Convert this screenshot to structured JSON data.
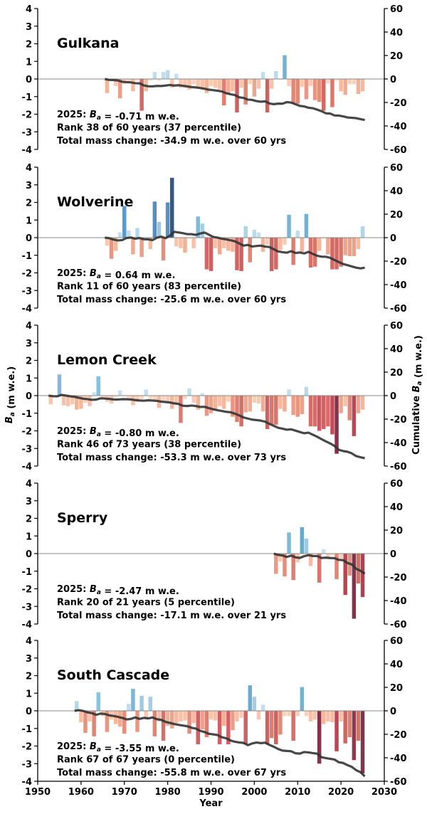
{
  "chart_data": {
    "type": "bar",
    "xlabel": "Year",
    "ylabel": "B_a (m w.e.)",
    "ylabel_right": "Cumulative B_a (m w.e.)",
    "xlim": [
      1950,
      2030
    ],
    "xticks": [
      1950,
      1960,
      1970,
      1980,
      1990,
      2000,
      2010,
      2020,
      2030
    ],
    "ylim": [
      -4,
      4
    ],
    "yticks": [
      -4,
      -3,
      -2,
      -1,
      0,
      1,
      2,
      3,
      4
    ],
    "ylim_right": [
      -60,
      60
    ],
    "yticks_right": [
      -60,
      -40,
      -20,
      0,
      20,
      40,
      60
    ],
    "bar_colormap": "red-blue diverging (red negative, blue positive)",
    "line_color": "#333333",
    "panels": [
      {
        "name": "Gulkana",
        "start_year": 1966,
        "values": [
          -0.8,
          -0.1,
          -0.4,
          -1.1,
          -0.3,
          -0.2,
          -0.7,
          -0.1,
          -1.8,
          -0.7,
          -0.1,
          0.4,
          -0.1,
          0.4,
          0.5,
          -0.5,
          0.3,
          -0.5,
          -0.5,
          -0.6,
          -0.3,
          -0.5,
          -0.6,
          -0.8,
          -0.4,
          -0.5,
          -0.6,
          -1.5,
          -0.9,
          -0.7,
          -1.9,
          -0.5,
          -1.45,
          -0.3,
          -1.0,
          -0.55,
          0.4,
          -1.9,
          -0.55,
          0.45,
          -0.05,
          1.35,
          -0.4,
          -1.4,
          -1.4,
          -0.45,
          -1.15,
          -0.4,
          -1.2,
          -1.3,
          -1.8,
          -0.25,
          -1.6,
          -0.1,
          -0.7,
          -0.9,
          -0.3,
          -0.3,
          -0.85,
          -0.71
        ],
        "annotation": [
          "2025: B_a = -0.71 m w.e.",
          "Rank 38 of 60 years (37 percentile)",
          "Total mass change: -34.9 m w.e. over 60 yrs"
        ]
      },
      {
        "name": "Wolverine",
        "start_year": 1966,
        "values": [
          -0.45,
          -1.2,
          -0.75,
          0.3,
          1.8,
          0.4,
          -0.95,
          0.55,
          -1.1,
          -0.05,
          -0.65,
          2.05,
          0.9,
          -1.3,
          2.0,
          3.4,
          -0.5,
          -0.6,
          -0.85,
          -0.05,
          -0.6,
          1.2,
          0.8,
          -1.8,
          -1.9,
          -0.6,
          -0.95,
          -0.6,
          -0.75,
          -0.8,
          -1.85,
          -1.9,
          0.65,
          -1.4,
          0.45,
          0.3,
          -0.8,
          -0.4,
          -1.9,
          -1.8,
          -0.7,
          -0.4,
          1.3,
          -1.55,
          0.4,
          -0.8,
          1.35,
          -1.7,
          -1.65,
          -0.75,
          -0.05,
          -0.95,
          -1.8,
          -1.8,
          -1.65,
          -1.0,
          -1.05,
          -1.05,
          -0.65,
          0.64
        ],
        "annotation": [
          "2025: B_a = 0.64 m w.e.",
          "Rank 11 of 60 years (83 percentile)",
          "Total mass change: -25.6 m w.e. over 60 yrs"
        ]
      },
      {
        "name": "Lemon Creek",
        "start_year": 1953,
        "values": [
          -0.5,
          -0.1,
          1.2,
          -0.55,
          -0.6,
          -0.5,
          -0.8,
          -0.75,
          -0.4,
          -0.6,
          0.2,
          1.1,
          -0.15,
          -0.35,
          -0.45,
          -0.1,
          0.3,
          -0.05,
          -0.15,
          -0.55,
          -0.35,
          -0.2,
          0.35,
          -0.2,
          -0.25,
          -0.7,
          -0.3,
          -0.4,
          -0.75,
          -0.5,
          -1.55,
          -0.2,
          0.4,
          -0.4,
          -0.8,
          0.15,
          -1.15,
          -1.0,
          -0.8,
          -0.6,
          -0.75,
          -0.35,
          -1.2,
          -1.5,
          -1.75,
          -0.95,
          -0.9,
          -0.4,
          -0.45,
          -0.9,
          -1.9,
          -1.65,
          -1.65,
          -0.75,
          -0.9,
          0.35,
          -1.1,
          -1.2,
          -1.05,
          0.5,
          -1.75,
          -1.75,
          -2.0,
          -1.9,
          -1.75,
          -2.2,
          -3.3,
          -1.0,
          -0.6,
          -1.4,
          -2.3,
          -1.0,
          -0.8
        ],
        "annotation": [
          "2025: B_a = -0.80 m w.e.",
          "Rank 46 of 73 years (38 percentile)",
          "Total mass change: -53.3 m w.e. over 73 yrs"
        ]
      },
      {
        "name": "Sperry",
        "start_year": 2005,
        "values": [
          -1.15,
          -0.45,
          -1.3,
          1.2,
          -1.5,
          -0.5,
          1.5,
          0.85,
          -0.7,
          -0.05,
          -1.65,
          0.25,
          -0.3,
          -0.1,
          -1.45,
          -0.3,
          -2.35,
          -1.25,
          -3.7,
          -1.7,
          -2.47
        ],
        "annotation": [
          "2025: B_a = -2.47 m w.e.",
          "Rank 20 of 21 years (5 percentile)",
          "Total mass change: -17.1 m w.e. over 21 yrs"
        ]
      },
      {
        "name": "South Cascade",
        "start_year": 1959,
        "values": [
          0.55,
          -0.65,
          -1.25,
          -0.6,
          -1.45,
          1.05,
          -0.3,
          -1.2,
          -0.5,
          -0.75,
          -0.9,
          -1.3,
          0.4,
          1.25,
          -1.2,
          0.85,
          -0.45,
          0.8,
          -1.45,
          -0.6,
          -1.7,
          -0.85,
          -1.0,
          -0.7,
          -0.6,
          -0.55,
          -1.3,
          -0.7,
          -1.9,
          -1.05,
          -1.5,
          -0.5,
          -0.55,
          -1.9,
          -0.85,
          -1.9,
          -1.1,
          -0.6,
          -0.4,
          -1.9,
          1.45,
          0.8,
          -0.5,
          0.35,
          -1.9,
          -1.55,
          -1.9,
          -1.35,
          -0.3,
          -0.3,
          -1.7,
          -0.3,
          1.35,
          -0.3,
          -0.6,
          -0.5,
          -3.0,
          -0.75,
          -0.6,
          -0.65,
          -2.3,
          -0.6,
          -1.85,
          -1.5,
          -2.8,
          -1.7,
          -3.55
        ],
        "annotation": [
          "2025: B_a = -3.55 m w.e.",
          "Rank 67 of 67 years (0 percentile)",
          "Total mass change: -55.8 m w.e. over 67 yrs"
        ]
      }
    ]
  }
}
